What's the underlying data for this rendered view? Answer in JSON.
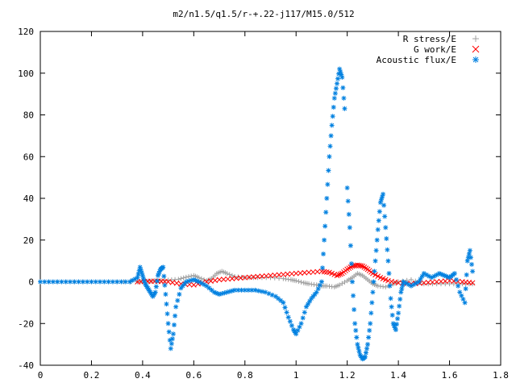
{
  "chart_data": {
    "type": "scatter",
    "title": "m2/n1.5/q1.5/r-+.22-j117/M15.0/512",
    "xlabel": "",
    "ylabel": "",
    "xlim": [
      0,
      1.8
    ],
    "ylim": [
      -40,
      120
    ],
    "x_ticks": [
      "0",
      "0.2",
      "0.4",
      "0.6",
      "0.8",
      "1",
      "1.2",
      "1.4",
      "1.6",
      "1.8"
    ],
    "y_ticks": [
      "-40",
      "-20",
      "0",
      "20",
      "40",
      "60",
      "80",
      "100",
      "120"
    ],
    "grid": false,
    "legend_position": "top-right",
    "series": [
      {
        "name": "R stress/E",
        "marker": "+",
        "color": "#a0a0a0",
        "points": [
          [
            0.0,
            0
          ],
          [
            0.1,
            0
          ],
          [
            0.2,
            0
          ],
          [
            0.3,
            0
          ],
          [
            0.38,
            0
          ],
          [
            0.42,
            0.3
          ],
          [
            0.46,
            0.6
          ],
          [
            0.5,
            0.8
          ],
          [
            0.54,
            1.2
          ],
          [
            0.57,
            2.2
          ],
          [
            0.6,
            3
          ],
          [
            0.62,
            2
          ],
          [
            0.65,
            0.5
          ],
          [
            0.67,
            1.5
          ],
          [
            0.69,
            4
          ],
          [
            0.71,
            5
          ],
          [
            0.73,
            4
          ],
          [
            0.76,
            2.5
          ],
          [
            0.8,
            2
          ],
          [
            0.85,
            2
          ],
          [
            0.9,
            2
          ],
          [
            0.95,
            1.5
          ],
          [
            0.98,
            1
          ],
          [
            1.0,
            0.5
          ],
          [
            1.03,
            -0.5
          ],
          [
            1.05,
            -1
          ],
          [
            1.08,
            -1.5
          ],
          [
            1.1,
            -2
          ],
          [
            1.12,
            -2
          ],
          [
            1.15,
            -2.5
          ],
          [
            1.17,
            -1.5
          ],
          [
            1.2,
            0.5
          ],
          [
            1.22,
            2
          ],
          [
            1.24,
            4
          ],
          [
            1.26,
            3
          ],
          [
            1.28,
            1
          ],
          [
            1.3,
            -1
          ],
          [
            1.32,
            -2
          ],
          [
            1.35,
            -2.5
          ],
          [
            1.38,
            -1
          ],
          [
            1.4,
            0
          ],
          [
            1.45,
            1
          ],
          [
            1.5,
            -1
          ],
          [
            1.55,
            -1
          ],
          [
            1.6,
            -1
          ],
          [
            1.65,
            -1
          ],
          [
            1.69,
            -1
          ]
        ]
      },
      {
        "name": "G work/E",
        "marker": "x",
        "color": "#ff0000",
        "points": [
          [
            0.38,
            0
          ],
          [
            0.42,
            0.2
          ],
          [
            0.46,
            0.3
          ],
          [
            0.5,
            0
          ],
          [
            0.55,
            -1
          ],
          [
            0.6,
            -1.5
          ],
          [
            0.65,
            0
          ],
          [
            0.7,
            1
          ],
          [
            0.75,
            1.5
          ],
          [
            0.8,
            2
          ],
          [
            0.85,
            2.5
          ],
          [
            0.9,
            3
          ],
          [
            0.95,
            3.5
          ],
          [
            1.0,
            4
          ],
          [
            1.05,
            4.5
          ],
          [
            1.1,
            5
          ],
          [
            1.13,
            4.5
          ],
          [
            1.16,
            3
          ],
          [
            1.18,
            4
          ],
          [
            1.2,
            6
          ],
          [
            1.22,
            7.5
          ],
          [
            1.24,
            8
          ],
          [
            1.26,
            7.5
          ],
          [
            1.28,
            6
          ],
          [
            1.3,
            4
          ],
          [
            1.33,
            2
          ],
          [
            1.36,
            0.5
          ],
          [
            1.4,
            -0.5
          ],
          [
            1.45,
            -1
          ],
          [
            1.5,
            -0.5
          ],
          [
            1.55,
            0
          ],
          [
            1.6,
            0.5
          ],
          [
            1.65,
            0
          ],
          [
            1.69,
            -0.5
          ]
        ]
      },
      {
        "name": "Acoustic flux/E",
        "marker": "*",
        "color": "#0080e0",
        "points": [
          [
            0.0,
            0
          ],
          [
            0.05,
            0
          ],
          [
            0.1,
            0
          ],
          [
            0.15,
            0
          ],
          [
            0.2,
            0
          ],
          [
            0.25,
            0
          ],
          [
            0.3,
            0
          ],
          [
            0.35,
            0
          ],
          [
            0.38,
            2
          ],
          [
            0.39,
            7
          ],
          [
            0.4,
            3
          ],
          [
            0.41,
            -1
          ],
          [
            0.42,
            -3
          ],
          [
            0.43,
            -5
          ],
          [
            0.44,
            -7
          ],
          [
            0.45,
            -5
          ],
          [
            0.46,
            3
          ],
          [
            0.47,
            6
          ],
          [
            0.48,
            7
          ],
          [
            0.49,
            -6
          ],
          [
            0.5,
            -20
          ],
          [
            0.51,
            -32
          ],
          [
            0.52,
            -25
          ],
          [
            0.53,
            -12
          ],
          [
            0.55,
            -3
          ],
          [
            0.57,
            0
          ],
          [
            0.6,
            1
          ],
          [
            0.62,
            0
          ],
          [
            0.65,
            -2
          ],
          [
            0.68,
            -5
          ],
          [
            0.7,
            -6
          ],
          [
            0.73,
            -5
          ],
          [
            0.76,
            -4
          ],
          [
            0.8,
            -4
          ],
          [
            0.84,
            -4
          ],
          [
            0.88,
            -5
          ],
          [
            0.92,
            -7
          ],
          [
            0.95,
            -10
          ],
          [
            0.97,
            -17
          ],
          [
            0.99,
            -23
          ],
          [
            1.0,
            -25
          ],
          [
            1.02,
            -20
          ],
          [
            1.04,
            -12
          ],
          [
            1.06,
            -8
          ],
          [
            1.08,
            -5
          ],
          [
            1.1,
            0
          ],
          [
            1.11,
            20
          ],
          [
            1.12,
            40
          ],
          [
            1.13,
            60
          ],
          [
            1.14,
            75
          ],
          [
            1.15,
            88
          ],
          [
            1.16,
            95
          ],
          [
            1.17,
            102
          ],
          [
            1.18,
            98
          ],
          [
            1.19,
            83
          ],
          [
            1.2,
            45
          ],
          [
            1.21,
            26
          ],
          [
            1.22,
            0
          ],
          [
            1.23,
            -20
          ],
          [
            1.24,
            -30
          ],
          [
            1.25,
            -35
          ],
          [
            1.26,
            -37
          ],
          [
            1.27,
            -36
          ],
          [
            1.28,
            -30
          ],
          [
            1.29,
            -20
          ],
          [
            1.3,
            -5
          ],
          [
            1.31,
            10
          ],
          [
            1.32,
            25
          ],
          [
            1.33,
            38
          ],
          [
            1.34,
            42
          ],
          [
            1.35,
            26
          ],
          [
            1.36,
            10
          ],
          [
            1.37,
            -8
          ],
          [
            1.38,
            -20
          ],
          [
            1.39,
            -23
          ],
          [
            1.4,
            -15
          ],
          [
            1.41,
            -5
          ],
          [
            1.42,
            0
          ],
          [
            1.45,
            -2
          ],
          [
            1.48,
            0
          ],
          [
            1.5,
            4
          ],
          [
            1.53,
            2
          ],
          [
            1.56,
            4
          ],
          [
            1.58,
            3
          ],
          [
            1.6,
            2
          ],
          [
            1.62,
            4
          ],
          [
            1.64,
            -5
          ],
          [
            1.66,
            -10
          ],
          [
            1.67,
            10
          ],
          [
            1.68,
            15
          ],
          [
            1.69,
            5
          ]
        ]
      }
    ]
  }
}
